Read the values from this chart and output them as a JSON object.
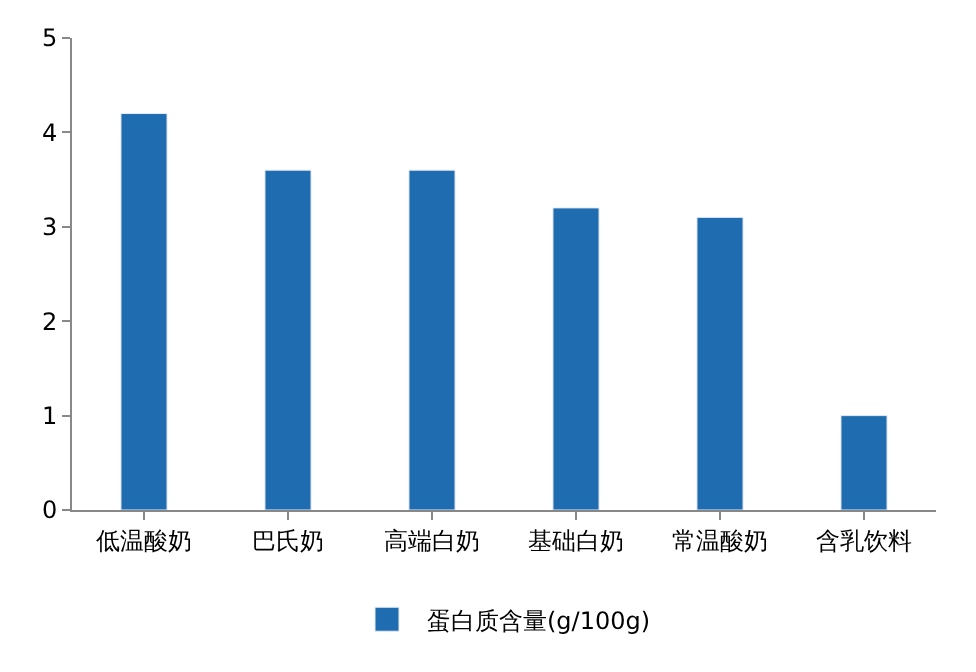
{
  "chart_data": {
    "type": "bar",
    "categories": [
      "低温酸奶",
      "巴氏奶",
      "高端白奶",
      "基础白奶",
      "常温酸奶",
      "含乳饮料"
    ],
    "series": [
      {
        "name": "蛋白质含量(g/100g)",
        "color": "#1f6db0",
        "values": [
          4.2,
          3.6,
          3.6,
          3.2,
          3.1,
          1.0
        ]
      }
    ],
    "ylim": [
      0,
      5
    ],
    "yticks": [
      0,
      1,
      2,
      3,
      4,
      5
    ],
    "legend": "bottom"
  }
}
